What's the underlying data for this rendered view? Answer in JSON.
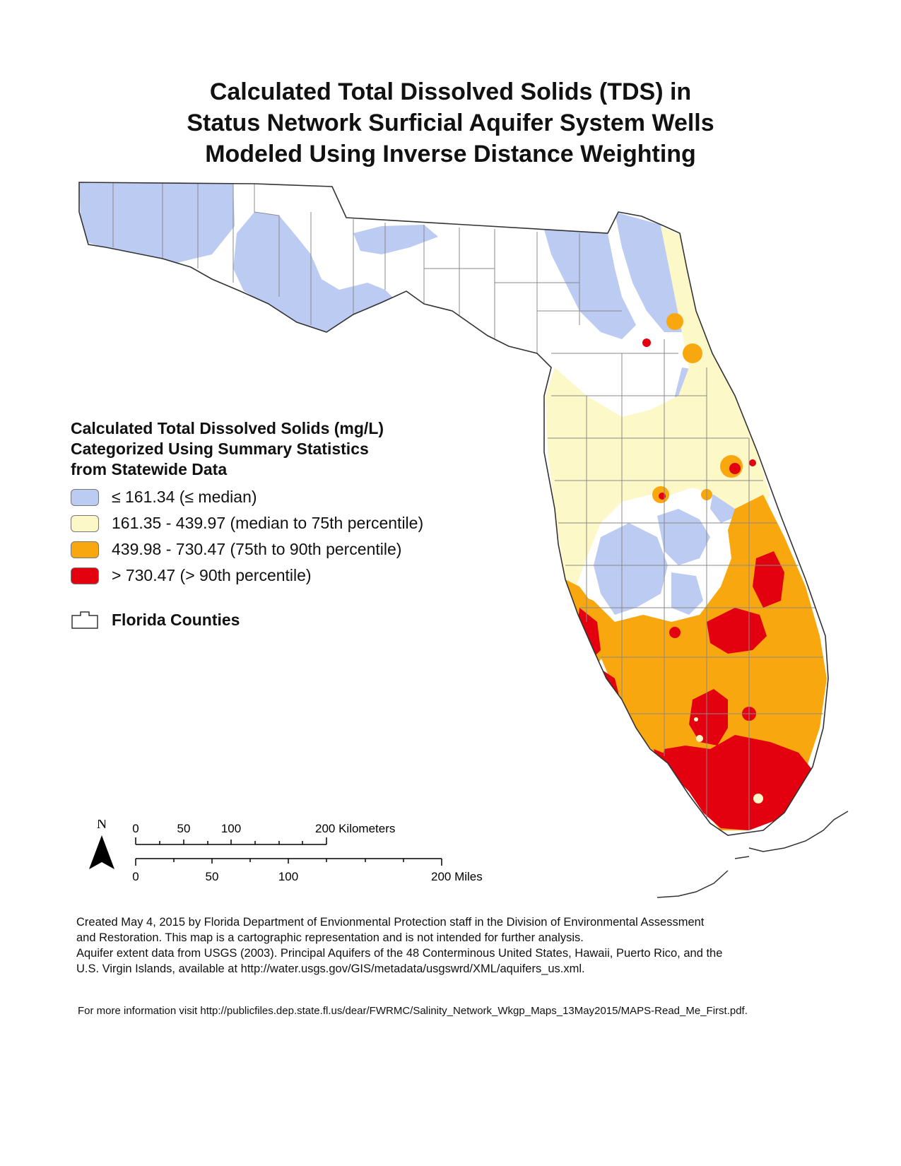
{
  "title": {
    "line1": "Calculated Total Dissolved Solids (TDS) in",
    "line2": "Status Network Surficial Aquifer System Wells",
    "line3": "Modeled Using Inverse Distance Weighting"
  },
  "legend": {
    "heading1": "Calculated Total Dissolved Solids (mg/L)",
    "heading2": "Categorized Using Summary Statistics",
    "heading3": "from Statewide Data",
    "classes": [
      {
        "label": "≤ 161.34 (≤ median)",
        "color": "#bccbf2"
      },
      {
        "label": "161.35 - 439.97 (median to 75th percentile)",
        "color": "#fdf8c8"
      },
      {
        "label": "439.98 - 730.47 (75th to 90th percentile)",
        "color": "#f9a70e"
      },
      {
        "label": "> 730.47 (> 90th percentile)",
        "color": "#e3000f"
      }
    ],
    "counties_label": "Florida Counties"
  },
  "scale": {
    "north": "N",
    "km_ticks": [
      "0",
      "50",
      "100",
      "200 Kilometers"
    ],
    "mile_ticks": [
      "0",
      "50",
      "100",
      "200 Miles"
    ]
  },
  "credits": {
    "line1": "Created May 4, 2015 by Florida Department of Envionmental Protection staff in the Division of Environmental Assessment",
    "line2": "and Restoration.  This map is a cartographic representation and is not intended for further analysis.",
    "line3": "Aquifer extent data from USGS (2003). Principal Aquifers of the 48 Conterminous United States, Hawaii, Puerto Rico, and the",
    "line4": "U.S. Virgin Islands, available at http://water.usgs.gov/GIS/metadata/usgswrd/XML/aquifers_us.xml."
  },
  "more_info": "For more information visit http://publicfiles.dep.state.fl.us/dear/FWRMC/Salinity_Network_Wkgp_Maps_13May2015/MAPS-Read_Me_First.pdf."
}
